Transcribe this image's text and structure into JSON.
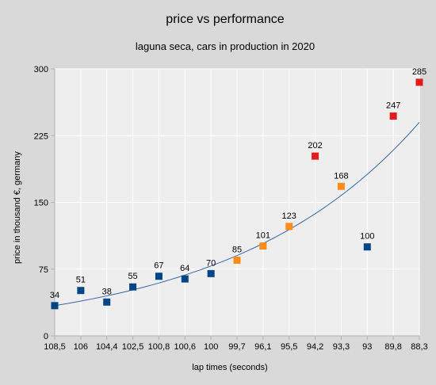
{
  "chart_data": {
    "type": "scatter",
    "title": "price vs performance",
    "subtitle": "laguna seca, cars in production in 2020",
    "xlabel": "lap times (seconds)",
    "ylabel": "price in thousand €, germany",
    "categories": [
      "108,5",
      "106",
      "104,4",
      "102,5",
      "100,8",
      "100,6",
      "100",
      "99,7",
      "96,1",
      "95,5",
      "94,2",
      "93,3",
      "93",
      "89,8",
      "88,3"
    ],
    "values": [
      34,
      51,
      38,
      55,
      67,
      64,
      70,
      85,
      101,
      123,
      202,
      168,
      100,
      247,
      285
    ],
    "point_colors": [
      "#004586",
      "#004586",
      "#004586",
      "#004586",
      "#004586",
      "#004586",
      "#004586",
      "#ff8c1a",
      "#ff8c1a",
      "#ff8c1a",
      "#e11c1c",
      "#ff8c1a",
      "#004586",
      "#e11c1c",
      "#e11c1c"
    ],
    "ylim": [
      0,
      300
    ],
    "yticks": [
      0,
      75,
      150,
      225,
      300
    ],
    "grid": true,
    "legend": "none",
    "trendline": {
      "type": "exponential",
      "start": 34,
      "end": 240,
      "color": "#3465a4"
    },
    "plot_background": "#eeeeee",
    "grid_color": "#ffffff"
  }
}
